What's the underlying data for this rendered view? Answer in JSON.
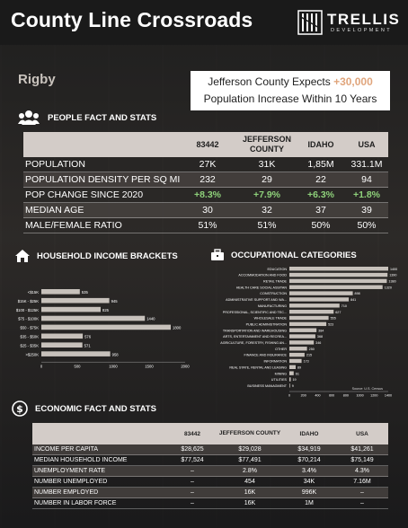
{
  "header": {
    "title": "County Line Crossroads",
    "logo_name": "TRELLIS",
    "logo_sub": "DEVELOPMENT"
  },
  "city": "Rigby",
  "callout": {
    "prefix": "Jefferson County Expects ",
    "highlight": "+30,000",
    "line2": "Population Increase Within 10 Years"
  },
  "people": {
    "heading": "PEOPLE FACT AND STATS",
    "columns": [
      "83442",
      "JEFFERSON COUNTY",
      "IDAHO",
      "USA"
    ],
    "rows": [
      {
        "label": "POPULATION",
        "values": [
          "27K",
          "31K",
          "1,85M",
          "331.1M"
        ]
      },
      {
        "label": "POPULATION DENSITY PER SQ MI",
        "values": [
          "232",
          "29",
          "22",
          "94"
        ]
      },
      {
        "label": "POP CHANGE SINCE 2020",
        "values": [
          "+8.3%",
          "+7.9%",
          "+6.3%",
          "+1.8%"
        ]
      },
      {
        "label": "MEDIAN AGE",
        "values": [
          "30",
          "32",
          "37",
          "39"
        ]
      },
      {
        "label": "MALE/FEMALE RATIO",
        "values": [
          "51%",
          "51%",
          "50%",
          "50%"
        ]
      }
    ]
  },
  "income_heading": "HOUSEHOLD INCOME BRACKETS",
  "occupation_heading": "OCCUPATIONAL CATEGORIES",
  "chart_data": [
    {
      "type": "bar",
      "orientation": "horizontal",
      "categories": [
        "<$15K",
        "$15K - $25K",
        "$100 - $125K",
        "$75 - $100K",
        "$50 - $75K",
        "$35 - $50K",
        "$25 - $35K",
        ">$250K"
      ],
      "values": [
        535,
        945,
        825,
        1440,
        1800,
        576,
        571,
        958
      ],
      "xticks": [
        0,
        500,
        1000,
        1500,
        2000
      ],
      "xlim": [
        0,
        2000
      ],
      "color": "#c7c1bb"
    },
    {
      "type": "bar",
      "orientation": "horizontal",
      "categories": [
        "EDUCATION",
        "ACCOMMODATION AND FOOD",
        "RETAIL TRADE",
        "HEALTH CARE SOCIAL ASSITAN",
        "CONSTRUCTION",
        "ADMINISTRATIVE SUPPORT AND WA...",
        "MANUFACTURING",
        "PROFESSIONAL, SCIENTIFIC AND TEC...",
        "WHOLESALE TRADE",
        "PUBLIC ADMINISTRATION",
        "TRANSPORTATION AND WAREHOUSING",
        "ARTS, ENTERTAINMENT AND RECREA...",
        "AGRICULTURE, FORESTRY, FISHING AN...",
        "OTHER",
        "FINANCE AND INSURANCE",
        "INFORMATION",
        "REAL STATE, RENTAL AND LEASING",
        "MINING",
        "UTILITIES",
        "BUSINESS MANAGMENT"
      ],
      "values": [
        1400,
        1390,
        1380,
        1320,
        898,
        841,
        710,
        627,
        555,
        523,
        384,
        368,
        346,
        250,
        215,
        173,
        89,
        61,
        19,
        9
      ],
      "xticks": [
        0,
        200,
        400,
        600,
        800,
        1000,
        1200,
        1400
      ],
      "xlim": [
        0,
        1400
      ],
      "color": "#c7c1bb",
      "source": "Source: U.S. Census"
    }
  ],
  "economic": {
    "heading": "ECONOMIC FACT AND STATS",
    "columns": [
      "83442",
      "JEFFERSON COUNTY",
      "IDAHO",
      "USA"
    ],
    "rows": [
      {
        "label": "INCOME PER CAPITA",
        "values": [
          "$28,625",
          "$29,028",
          "$34,919",
          "$41,261"
        ]
      },
      {
        "label": "MEDIAN HOUSEHOLD INCOME",
        "values": [
          "$77,524",
          "$77,491",
          "$70,214",
          "$75,149"
        ]
      },
      {
        "label": "UNEMPLOYMENT RATE",
        "values": [
          "–",
          "2.8%",
          "3.4%",
          "4.3%"
        ]
      },
      {
        "label": "NUMBER UNEMPLOYED",
        "values": [
          "–",
          "454",
          "34K",
          "7.16M"
        ]
      },
      {
        "label": "NUMBER EMPLOYED",
        "values": [
          "–",
          "16K",
          "996K",
          "–"
        ]
      },
      {
        "label": "NUMBER IN LABOR FORCE",
        "values": [
          "–",
          "16K",
          "1M",
          "–"
        ]
      }
    ]
  }
}
